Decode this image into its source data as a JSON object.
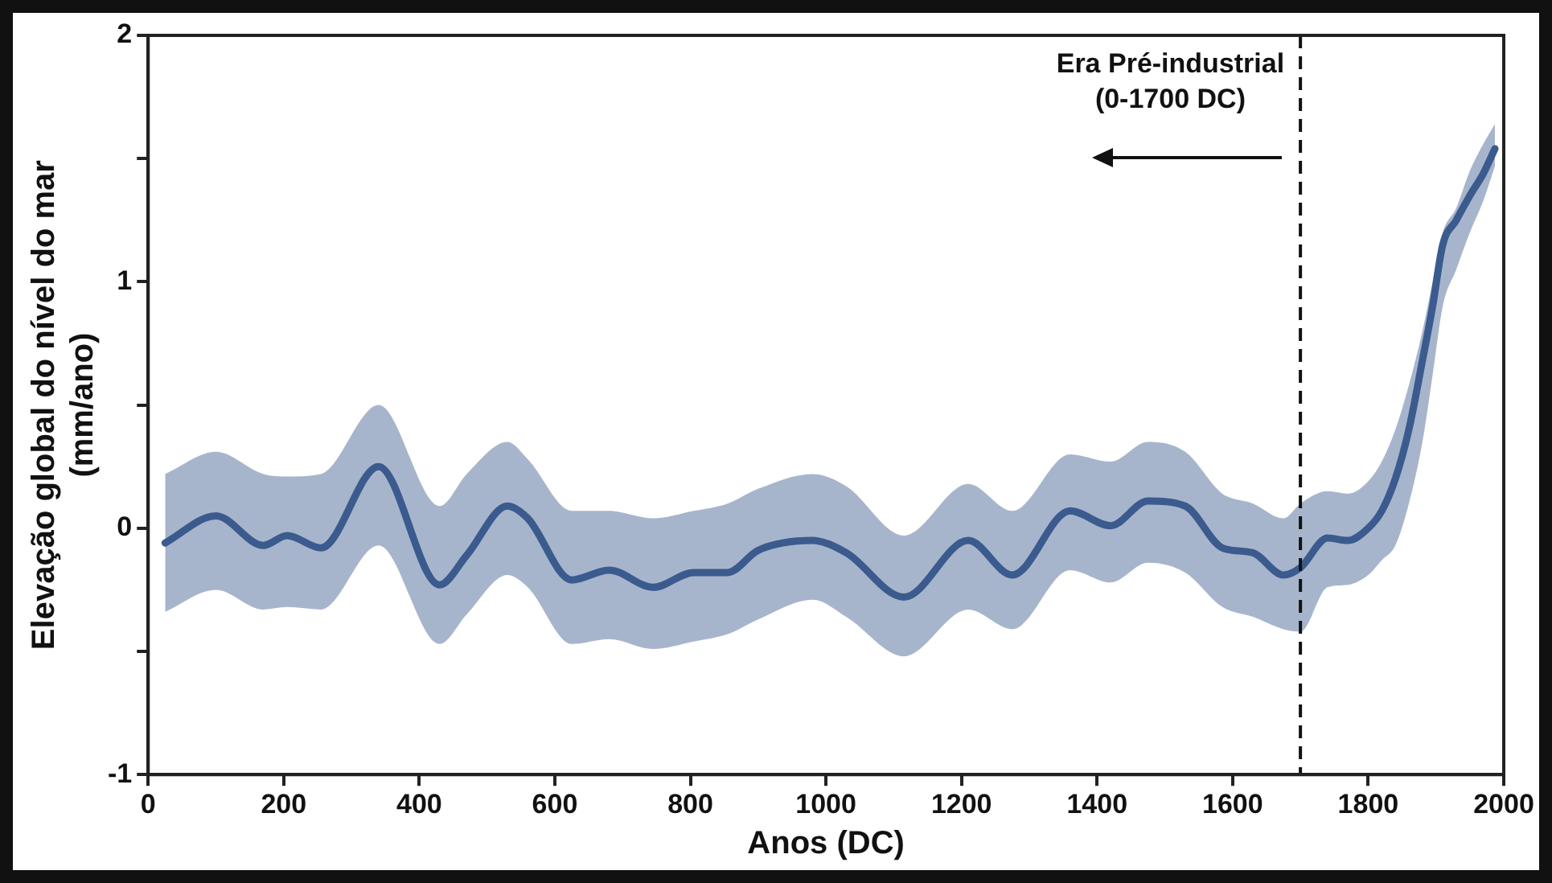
{
  "chart_data": {
    "type": "line",
    "xlabel": "Anos (DC)",
    "ylabel": "Elevação global do nível do mar (mm/ano)",
    "xlim": [
      0,
      2000
    ],
    "xticks": [
      0,
      200,
      400,
      600,
      800,
      1000,
      1200,
      1400,
      1600,
      1800,
      2000
    ],
    "ylim": [
      -1,
      2
    ],
    "yticks": [
      -1,
      {
        "value": -0.5,
        "label": null
      },
      0,
      {
        "value": 0.5,
        "label": null
      },
      1,
      {
        "value": 1.5,
        "label": null
      },
      2
    ],
    "grid": false,
    "legend": false,
    "marker": "none",
    "line_style": "solid",
    "series": [
      {
        "color": "#3b5b8e",
        "x": [
          25,
          100,
          170,
          205,
          255,
          340,
          430,
          470,
          530,
          560,
          625,
          680,
          745,
          805,
          855,
          900,
          980,
          1030,
          1115,
          1210,
          1275,
          1360,
          1420,
          1475,
          1530,
          1585,
          1630,
          1675,
          1700,
          1740,
          1770,
          1800,
          1820,
          1840,
          1860,
          1880,
          1895,
          1910,
          1930,
          1950,
          1970,
          1987
        ],
        "values": [
          -0.06,
          0.05,
          -0.07,
          -0.03,
          -0.08,
          0.25,
          -0.23,
          -0.11,
          0.09,
          0.04,
          -0.21,
          -0.17,
          -0.24,
          -0.18,
          -0.18,
          -0.09,
          -0.05,
          -0.1,
          -0.28,
          -0.05,
          -0.19,
          0.07,
          0.01,
          0.11,
          0.09,
          -0.08,
          -0.1,
          -0.19,
          -0.16,
          -0.04,
          -0.05,
          0.0,
          0.07,
          0.2,
          0.4,
          0.68,
          0.9,
          1.15,
          1.25,
          1.35,
          1.44,
          1.54
        ],
        "lower": [
          -0.34,
          -0.25,
          -0.33,
          -0.32,
          -0.33,
          -0.07,
          -0.47,
          -0.35,
          -0.19,
          -0.24,
          -0.47,
          -0.45,
          -0.49,
          -0.46,
          -0.43,
          -0.37,
          -0.29,
          -0.36,
          -0.52,
          -0.33,
          -0.41,
          -0.17,
          -0.22,
          -0.14,
          -0.18,
          -0.32,
          -0.36,
          -0.41,
          -0.42,
          -0.24,
          -0.23,
          -0.19,
          -0.13,
          -0.07,
          0.1,
          0.35,
          0.62,
          0.9,
          1.05,
          1.2,
          1.33,
          1.47
        ],
        "upper": [
          0.22,
          0.31,
          0.22,
          0.21,
          0.22,
          0.5,
          0.09,
          0.22,
          0.35,
          0.28,
          0.07,
          0.07,
          0.04,
          0.07,
          0.1,
          0.16,
          0.22,
          0.17,
          -0.03,
          0.18,
          0.07,
          0.3,
          0.27,
          0.35,
          0.31,
          0.14,
          0.1,
          0.04,
          0.1,
          0.15,
          0.14,
          0.19,
          0.27,
          0.4,
          0.58,
          0.8,
          1.0,
          1.2,
          1.3,
          1.45,
          1.56,
          1.64
        ]
      }
    ],
    "ref_lines": [
      {
        "axis": "x",
        "value": 1700,
        "label": "Era Pré-industrial (0-1700 DC)",
        "color": "#111111",
        "line_style": "dashed"
      }
    ]
  }
}
